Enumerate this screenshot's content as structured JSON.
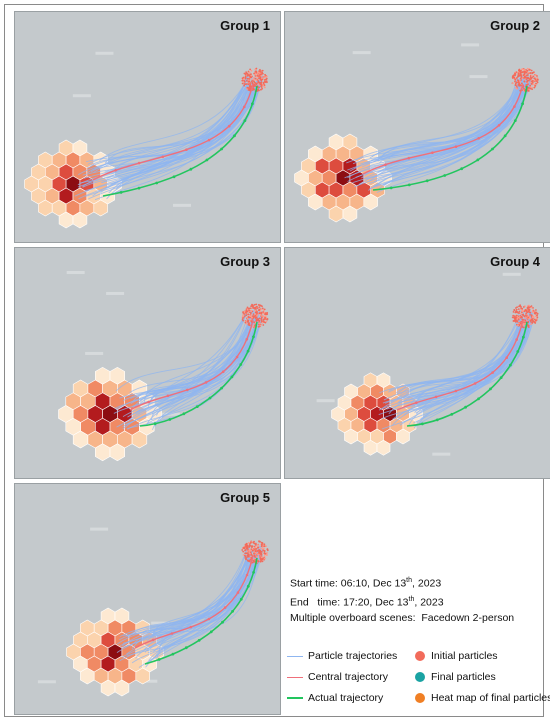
{
  "panels": [
    {
      "title": "Group 1"
    },
    {
      "title": "Group 2"
    },
    {
      "title": "Group 3"
    },
    {
      "title": "Group 4"
    },
    {
      "title": "Group 5"
    }
  ],
  "info": {
    "start_label": "Start time:",
    "start_value": "06:10, Dec 13",
    "start_sup": "th",
    "start_year": ", 2023",
    "end_label": "End   time:",
    "end_value": "17:20, Dec 13",
    "end_sup": "th",
    "end_year": ", 2023",
    "scenes": "Multiple overboard scenes:  Facedown 2-person"
  },
  "legend": {
    "particle_trajectories": "Particle trajectories",
    "initial_particles": "Initial particles",
    "central_trajectory": "Central trajectory",
    "final_particles": "Final particles",
    "actual_trajectory": "Actual trajectory",
    "heat_map": "Heat map of final particles"
  },
  "colors": {
    "map_background": "#c4c9cc",
    "particle_trajectory": "#8fb6f0",
    "central_trajectory": "#ef6f7a",
    "actual_trajectory": "#22c55e",
    "initial_particles": "#f26b5b",
    "final_particles": "#1aa3a3",
    "heat_map_dark": "#a50f15",
    "heat_map_light": "#fde9d2"
  }
}
